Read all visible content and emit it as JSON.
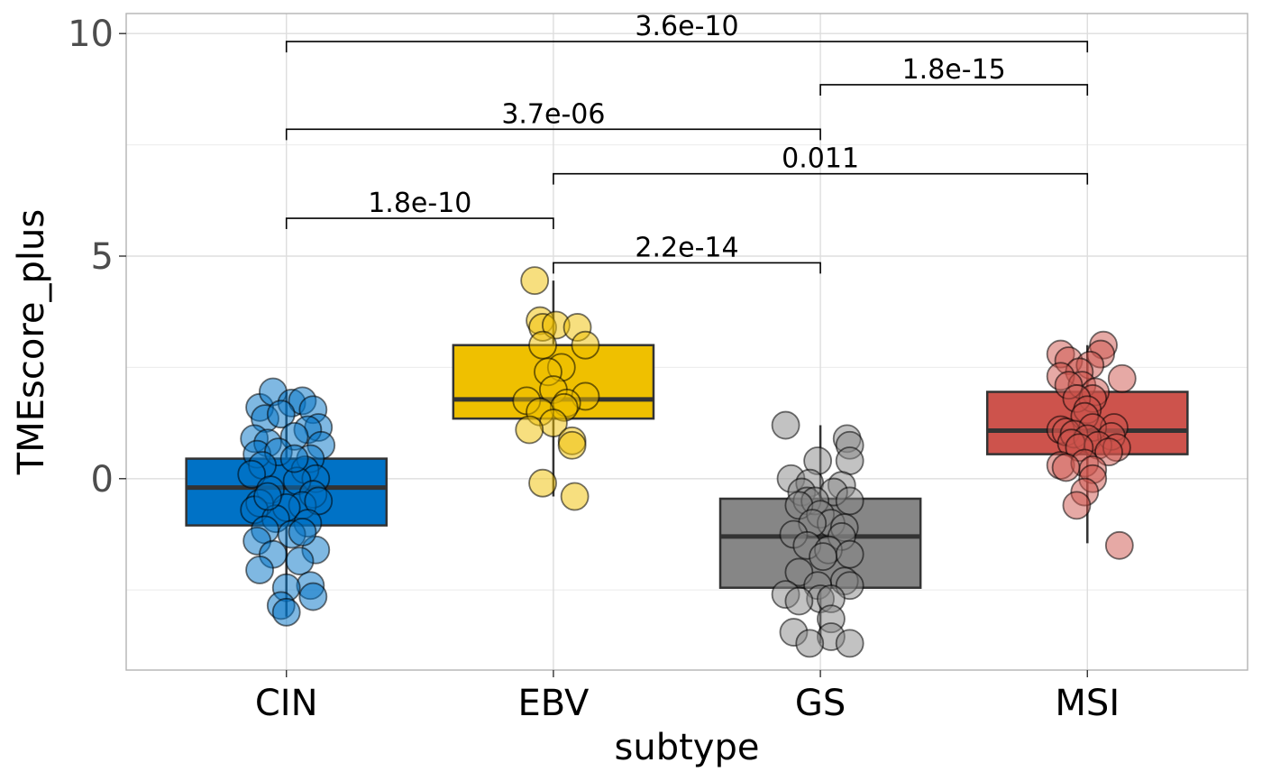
{
  "chart_data": {
    "type": "box",
    "xlabel": "subtype",
    "ylabel": "TMEscore_plus",
    "ylim": [
      -4.3,
      10.45
    ],
    "y_ticks": [
      0,
      5,
      10
    ],
    "y_tick_labels": [
      "0",
      "5",
      "10"
    ],
    "y_minor_ticks": [
      -2.5,
      2.5,
      7.5
    ],
    "grid": true,
    "legend": "none",
    "categories": [
      "CIN",
      "EBV",
      "GS",
      "MSI"
    ],
    "colors": [
      "#0072c6",
      "#efc000",
      "#868686",
      "#cd534c"
    ],
    "boxes": [
      {
        "name": "CIN",
        "min": -3.1,
        "q1": -1.05,
        "median": -0.2,
        "q3": 0.45,
        "max": 1.95
      },
      {
        "name": "EBV",
        "min": -0.4,
        "q1": 1.35,
        "median": 1.78,
        "q3": 3.0,
        "max": 4.45
      },
      {
        "name": "GS",
        "min": -3.7,
        "q1": -2.45,
        "median": -1.3,
        "q3": -0.45,
        "max": 1.2
      },
      {
        "name": "MSI",
        "min": -1.45,
        "q1": 0.55,
        "median": 1.08,
        "q3": 1.95,
        "max": 3.0
      }
    ],
    "points": [
      {
        "group": "CIN",
        "values": [
          {
            "dx": -0.1,
            "y": 1.6
          },
          {
            "dx": -0.05,
            "y": 1.95
          },
          {
            "dx": 0.02,
            "y": 1.7
          },
          {
            "dx": 0.06,
            "y": 1.75
          },
          {
            "dx": 0.1,
            "y": 1.55
          },
          {
            "dx": -0.08,
            "y": 1.35
          },
          {
            "dx": 0.12,
            "y": 1.15
          },
          {
            "dx": -0.02,
            "y": 1.45
          },
          {
            "dx": 0.08,
            "y": 1.1
          },
          {
            "dx": -0.12,
            "y": 0.9
          },
          {
            "dx": 0.13,
            "y": 0.75
          },
          {
            "dx": -0.07,
            "y": 0.8
          },
          {
            "dx": 0.03,
            "y": 0.95
          },
          {
            "dx": -0.11,
            "y": 0.55
          },
          {
            "dx": 0.09,
            "y": 0.45
          },
          {
            "dx": -0.03,
            "y": 0.6
          },
          {
            "dx": 0.07,
            "y": 0.2
          },
          {
            "dx": -0.09,
            "y": 0.3
          },
          {
            "dx": 0.11,
            "y": 0.0
          },
          {
            "dx": -0.13,
            "y": 0.1
          },
          {
            "dx": 0.04,
            "y": -0.05
          },
          {
            "dx": -0.06,
            "y": -0.25
          },
          {
            "dx": 0.1,
            "y": -0.35
          },
          {
            "dx": -0.1,
            "y": -0.55
          },
          {
            "dx": 0.06,
            "y": -0.6
          },
          {
            "dx": -0.12,
            "y": -0.7
          },
          {
            "dx": 0.12,
            "y": -0.5
          },
          {
            "dx": 0.0,
            "y": -0.65
          },
          {
            "dx": -0.04,
            "y": -0.9
          },
          {
            "dx": 0.08,
            "y": -1.0
          },
          {
            "dx": -0.08,
            "y": -1.15
          },
          {
            "dx": 0.02,
            "y": -1.25
          },
          {
            "dx": -0.11,
            "y": -1.4
          },
          {
            "dx": 0.11,
            "y": -1.6
          },
          {
            "dx": -0.05,
            "y": -1.7
          },
          {
            "dx": 0.05,
            "y": -1.85
          },
          {
            "dx": -0.1,
            "y": -2.05
          },
          {
            "dx": 0.09,
            "y": -2.4
          },
          {
            "dx": 0.0,
            "y": -2.45
          },
          {
            "dx": 0.1,
            "y": -2.65
          },
          {
            "dx": -0.02,
            "y": -2.85
          },
          {
            "dx": 0.0,
            "y": -3.0
          },
          {
            "dx": 0.06,
            "y": -1.2
          },
          {
            "dx": -0.07,
            "y": -0.4
          },
          {
            "dx": 0.03,
            "y": 0.45
          }
        ]
      },
      {
        "group": "EBV",
        "values": [
          {
            "dx": -0.07,
            "y": 4.45
          },
          {
            "dx": -0.05,
            "y": 3.55
          },
          {
            "dx": -0.04,
            "y": 3.4
          },
          {
            "dx": 0.01,
            "y": 3.45
          },
          {
            "dx": 0.09,
            "y": 3.4
          },
          {
            "dx": -0.04,
            "y": 3.0
          },
          {
            "dx": 0.12,
            "y": 3.0
          },
          {
            "dx": 0.03,
            "y": 2.5
          },
          {
            "dx": -0.02,
            "y": 2.4
          },
          {
            "dx": 0.0,
            "y": 2.0
          },
          {
            "dx": 0.12,
            "y": 1.85
          },
          {
            "dx": -0.1,
            "y": 1.75
          },
          {
            "dx": 0.05,
            "y": 1.7
          },
          {
            "dx": 0.04,
            "y": 1.6
          },
          {
            "dx": -0.05,
            "y": 1.5
          },
          {
            "dx": 0.0,
            "y": 1.25
          },
          {
            "dx": -0.09,
            "y": 1.1
          },
          {
            "dx": 0.07,
            "y": 0.85
          },
          {
            "dx": 0.07,
            "y": 0.75
          },
          {
            "dx": -0.04,
            "y": -0.1
          },
          {
            "dx": 0.08,
            "y": -0.4
          }
        ]
      },
      {
        "group": "GS",
        "values": [
          {
            "dx": -0.13,
            "y": 1.2
          },
          {
            "dx": 0.1,
            "y": 0.9
          },
          {
            "dx": 0.11,
            "y": 0.75
          },
          {
            "dx": -0.01,
            "y": 0.4
          },
          {
            "dx": 0.11,
            "y": 0.4
          },
          {
            "dx": -0.11,
            "y": 0.0
          },
          {
            "dx": -0.04,
            "y": -0.1
          },
          {
            "dx": 0.08,
            "y": -0.15
          },
          {
            "dx": -0.07,
            "y": -0.3
          },
          {
            "dx": 0.05,
            "y": -0.3
          },
          {
            "dx": -0.05,
            "y": -0.5
          },
          {
            "dx": -0.02,
            "y": -0.5
          },
          {
            "dx": 0.11,
            "y": -0.5
          },
          {
            "dx": -0.08,
            "y": -0.6
          },
          {
            "dx": 0.0,
            "y": -0.8
          },
          {
            "dx": 0.04,
            "y": -1.0
          },
          {
            "dx": -0.03,
            "y": -1.0
          },
          {
            "dx": 0.09,
            "y": -1.1
          },
          {
            "dx": -0.1,
            "y": -1.25
          },
          {
            "dx": 0.08,
            "y": -1.3
          },
          {
            "dx": -0.05,
            "y": -1.5
          },
          {
            "dx": 0.03,
            "y": -1.6
          },
          {
            "dx": 0.11,
            "y": -1.7
          },
          {
            "dx": 0.01,
            "y": -1.75
          },
          {
            "dx": -0.08,
            "y": -2.1
          },
          {
            "dx": 0.09,
            "y": -2.3
          },
          {
            "dx": 0.11,
            "y": -2.4
          },
          {
            "dx": -0.01,
            "y": -2.4
          },
          {
            "dx": -0.13,
            "y": -2.6
          },
          {
            "dx": 0.0,
            "y": -2.7
          },
          {
            "dx": 0.04,
            "y": -2.7
          },
          {
            "dx": -0.08,
            "y": -2.75
          },
          {
            "dx": 0.04,
            "y": -3.15
          },
          {
            "dx": -0.1,
            "y": -3.45
          },
          {
            "dx": 0.04,
            "y": -3.55
          },
          {
            "dx": -0.04,
            "y": -3.7
          },
          {
            "dx": 0.11,
            "y": -3.7
          }
        ]
      },
      {
        "group": "MSI",
        "values": [
          {
            "dx": 0.06,
            "y": 3.0
          },
          {
            "dx": -0.1,
            "y": 2.8
          },
          {
            "dx": 0.05,
            "y": 2.8
          },
          {
            "dx": -0.07,
            "y": 2.65
          },
          {
            "dx": 0.01,
            "y": 2.55
          },
          {
            "dx": -0.03,
            "y": 2.4
          },
          {
            "dx": -0.1,
            "y": 2.3
          },
          {
            "dx": 0.13,
            "y": 2.25
          },
          {
            "dx": -0.02,
            "y": 2.1
          },
          {
            "dx": -0.07,
            "y": 2.1
          },
          {
            "dx": 0.03,
            "y": 1.95
          },
          {
            "dx": 0.02,
            "y": 1.8
          },
          {
            "dx": -0.04,
            "y": 1.8
          },
          {
            "dx": 0.0,
            "y": 1.55
          },
          {
            "dx": -0.01,
            "y": 1.4
          },
          {
            "dx": 0.1,
            "y": 1.15
          },
          {
            "dx": 0.02,
            "y": 1.15
          },
          {
            "dx": -0.1,
            "y": 1.1
          },
          {
            "dx": -0.08,
            "y": 1.05
          },
          {
            "dx": -0.05,
            "y": 1.0
          },
          {
            "dx": 0.09,
            "y": 0.95
          },
          {
            "dx": 0.0,
            "y": 0.9
          },
          {
            "dx": -0.06,
            "y": 0.8
          },
          {
            "dx": 0.04,
            "y": 0.75
          },
          {
            "dx": -0.03,
            "y": 0.7
          },
          {
            "dx": 0.11,
            "y": 0.7
          },
          {
            "dx": 0.08,
            "y": 0.6
          },
          {
            "dx": -0.1,
            "y": 0.3
          },
          {
            "dx": -0.01,
            "y": 0.35
          },
          {
            "dx": 0.02,
            "y": 0.2
          },
          {
            "dx": -0.08,
            "y": 0.25
          },
          {
            "dx": 0.02,
            "y": 0.0
          },
          {
            "dx": -0.01,
            "y": -0.3
          },
          {
            "dx": -0.04,
            "y": -0.6
          },
          {
            "dx": 0.12,
            "y": -1.5
          }
        ]
      }
    ],
    "comparisons": [
      {
        "from": "CIN",
        "to": "EBV",
        "y": 5.85,
        "label": "1.8e-10"
      },
      {
        "from": "EBV",
        "to": "GS",
        "y": 4.85,
        "label": "2.2e-14"
      },
      {
        "from": "EBV",
        "to": "MSI",
        "y": 6.85,
        "label": "0.011"
      },
      {
        "from": "CIN",
        "to": "GS",
        "y": 7.85,
        "label": "3.7e-06"
      },
      {
        "from": "GS",
        "to": "MSI",
        "y": 8.85,
        "label": "1.8e-15"
      },
      {
        "from": "CIN",
        "to": "MSI",
        "y": 9.82,
        "label": "3.6e-10"
      }
    ]
  }
}
